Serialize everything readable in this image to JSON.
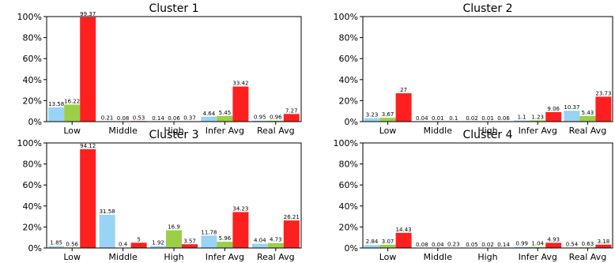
{
  "colors": {
    "series_1": "#99d3f5",
    "series_2": "#9ccf48",
    "series_3": "#ff1f1f",
    "axis": "#000000"
  },
  "chart_data": [
    {
      "type": "bar",
      "title": "Cluster 1",
      "categories": [
        "Low",
        "Middle",
        "High",
        "Infer Avg",
        "Real Avg"
      ],
      "ylim": [
        0,
        100
      ],
      "yticks": [
        "0%",
        "20%",
        "40%",
        "60%",
        "80%",
        "100%"
      ],
      "grid": false,
      "series": [
        {
          "values": [
            13.58,
            0.21,
            0.14,
            4.64,
            0.95
          ]
        },
        {
          "values": [
            16.22,
            0.08,
            0.06,
            5.45,
            0.96
          ]
        },
        {
          "values": [
            99.37,
            0.53,
            0.37,
            33.42,
            7.27
          ]
        }
      ]
    },
    {
      "type": "bar",
      "title": "Cluster 2",
      "categories": [
        "Low",
        "Middle",
        "High",
        "Infer Avg",
        "Real Avg"
      ],
      "ylim": [
        0,
        100
      ],
      "yticks": [
        "0%",
        "20%",
        "40%",
        "60%",
        "80%",
        "100%"
      ],
      "grid": false,
      "series": [
        {
          "values": [
            3.23,
            0.04,
            0.02,
            1.1,
            10.37
          ]
        },
        {
          "values": [
            3.67,
            0.01,
            0.01,
            1.23,
            5.43
          ]
        },
        {
          "values": [
            27.0,
            0.1,
            0.06,
            9.06,
            23.73
          ]
        }
      ]
    },
    {
      "type": "bar",
      "title": "Cluster 3",
      "categories": [
        "Low",
        "Middle",
        "High",
        "Infer Avg",
        "Real Avg"
      ],
      "ylim": [
        0,
        100
      ],
      "yticks": [
        "0%",
        "20%",
        "40%",
        "60%",
        "80%",
        "100%"
      ],
      "grid": false,
      "series": [
        {
          "values": [
            1.85,
            31.58,
            1.92,
            11.78,
            4.04
          ]
        },
        {
          "values": [
            0.56,
            0.4,
            16.9,
            5.96,
            4.73
          ]
        },
        {
          "values": [
            94.12,
            5.0,
            3.57,
            34.23,
            26.21
          ]
        }
      ]
    },
    {
      "type": "bar",
      "title": "Cluster 4",
      "categories": [
        "Low",
        "Middle",
        "High",
        "Infer Avg",
        "Real Avg"
      ],
      "ylim": [
        0,
        100
      ],
      "yticks": [
        "0%",
        "20%",
        "40%",
        "60%",
        "80%",
        "100%"
      ],
      "grid": false,
      "series": [
        {
          "values": [
            2.84,
            0.08,
            0.05,
            0.99,
            0.54
          ]
        },
        {
          "values": [
            3.07,
            0.04,
            0.02,
            1.04,
            0.63
          ]
        },
        {
          "values": [
            14.43,
            0.23,
            0.14,
            4.93,
            3.18
          ]
        }
      ]
    }
  ]
}
